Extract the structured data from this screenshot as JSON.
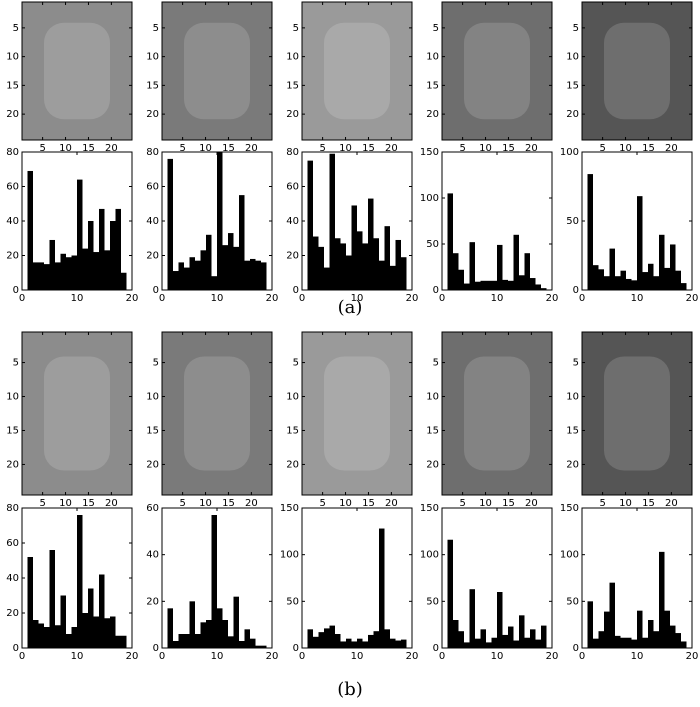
{
  "captions": [
    "(a)",
    "(b)"
  ],
  "chart_data": [
    {
      "type": "image",
      "xlim": [
        0.5,
        24.5
      ],
      "ylim": [
        24.5,
        0.5
      ],
      "xticks": [
        5,
        10,
        15,
        20
      ],
      "yticks": [
        5,
        10,
        15,
        20
      ]
    },
    {
      "type": "image",
      "xlim": [
        0.5,
        24.5
      ],
      "ylim": [
        24.5,
        0.5
      ],
      "xticks": [
        5,
        10,
        15,
        20
      ],
      "yticks": [
        5,
        10,
        15,
        20
      ]
    },
    {
      "type": "image",
      "xlim": [
        0.5,
        24.5
      ],
      "ylim": [
        24.5,
        0.5
      ],
      "xticks": [
        5,
        10,
        15,
        20
      ],
      "yticks": [
        5,
        10,
        15,
        20
      ]
    },
    {
      "type": "image",
      "xlim": [
        0.5,
        24.5
      ],
      "ylim": [
        24.5,
        0.5
      ],
      "xticks": [
        5,
        10,
        15,
        20
      ],
      "yticks": [
        5,
        10,
        15,
        20
      ]
    },
    {
      "type": "image",
      "xlim": [
        0.5,
        24.5
      ],
      "ylim": [
        24.5,
        0.5
      ],
      "xticks": [
        5,
        10,
        15,
        20
      ],
      "yticks": [
        5,
        10,
        15,
        20
      ]
    },
    {
      "type": "histogram",
      "bins": [
        1,
        2,
        3,
        4,
        5,
        6,
        7,
        8,
        9,
        10,
        11,
        12,
        13,
        14,
        15,
        16,
        17,
        18,
        19
      ],
      "values": [
        69,
        16,
        16,
        15,
        29,
        16,
        21,
        19,
        20,
        64,
        24,
        40,
        22,
        47,
        23,
        40,
        47,
        10
      ],
      "color": "#000000",
      "xlim": [
        0,
        20
      ],
      "ylim": [
        0,
        80
      ],
      "xticks": [
        0,
        10,
        20
      ],
      "yticks": [
        0,
        20,
        40,
        60,
        80
      ]
    },
    {
      "type": "histogram",
      "bins": [
        1,
        2,
        3,
        4,
        5,
        6,
        7,
        8,
        9,
        10,
        11,
        12,
        13,
        14,
        15,
        16,
        17,
        18,
        19
      ],
      "values": [
        76,
        11,
        16,
        13,
        19,
        17,
        23,
        32,
        8,
        80,
        26,
        33,
        25,
        55,
        17,
        18,
        17,
        16
      ],
      "color": "#000000",
      "xlim": [
        0,
        20
      ],
      "ylim": [
        0,
        80
      ],
      "xticks": [
        0,
        10,
        20
      ],
      "yticks": [
        0,
        20,
        40,
        60,
        80
      ]
    },
    {
      "type": "histogram",
      "bins": [
        1,
        2,
        3,
        4,
        5,
        6,
        7,
        8,
        9,
        10,
        11,
        12,
        13,
        14,
        15,
        16,
        17,
        18,
        19
      ],
      "values": [
        75,
        31,
        25,
        13,
        79,
        30,
        27,
        20,
        49,
        34,
        27,
        53,
        30,
        17,
        37,
        14,
        29,
        19
      ],
      "color": "#000000",
      "xlim": [
        0,
        20
      ],
      "ylim": [
        0,
        80
      ],
      "xticks": [
        0,
        10,
        20
      ],
      "yticks": [
        0,
        20,
        40,
        60,
        80
      ]
    },
    {
      "type": "histogram",
      "bins": [
        1,
        2,
        3,
        4,
        5,
        6,
        7,
        8,
        9,
        10,
        11,
        12,
        13,
        14,
        15,
        16,
        17,
        18,
        19
      ],
      "values": [
        105,
        40,
        22,
        7,
        52,
        9,
        10,
        10,
        10,
        49,
        11,
        10,
        60,
        16,
        40,
        13,
        6,
        2
      ],
      "color": "#000000",
      "xlim": [
        0,
        20
      ],
      "ylim": [
        0,
        150
      ],
      "xticks": [
        0,
        10,
        20
      ],
      "yticks": [
        0,
        50,
        100,
        150
      ]
    },
    {
      "type": "histogram",
      "bins": [
        1,
        2,
        3,
        4,
        5,
        6,
        7,
        8,
        9,
        10,
        11,
        12,
        13,
        14,
        15,
        16,
        17,
        18,
        19
      ],
      "values": [
        84,
        18,
        15,
        10,
        30,
        10,
        14,
        8,
        7,
        68,
        13,
        19,
        10,
        40,
        16,
        33,
        14,
        5
      ],
      "color": "#000000",
      "xlim": [
        0,
        20
      ],
      "ylim": [
        0,
        100
      ],
      "xticks": [
        0,
        10,
        20
      ],
      "yticks": [
        0,
        50,
        100
      ]
    },
    {
      "type": "image",
      "xlim": [
        0.5,
        24.5
      ],
      "ylim": [
        24.5,
        0.5
      ],
      "xticks": [
        5,
        10,
        15,
        20
      ],
      "yticks": [
        5,
        10,
        15,
        20
      ]
    },
    {
      "type": "image",
      "xlim": [
        0.5,
        24.5
      ],
      "ylim": [
        24.5,
        0.5
      ],
      "xticks": [
        5,
        10,
        15,
        20
      ],
      "yticks": [
        5,
        10,
        15,
        20
      ]
    },
    {
      "type": "image",
      "xlim": [
        0.5,
        24.5
      ],
      "ylim": [
        24.5,
        0.5
      ],
      "xticks": [
        5,
        10,
        15,
        20
      ],
      "yticks": [
        5,
        10,
        15,
        20
      ]
    },
    {
      "type": "image",
      "xlim": [
        0.5,
        24.5
      ],
      "ylim": [
        24.5,
        0.5
      ],
      "xticks": [
        5,
        10,
        15,
        20
      ],
      "yticks": [
        5,
        10,
        15,
        20
      ]
    },
    {
      "type": "image",
      "xlim": [
        0.5,
        24.5
      ],
      "ylim": [
        24.5,
        0.5
      ],
      "xticks": [
        5,
        10,
        15,
        20
      ],
      "yticks": [
        5,
        10,
        15,
        20
      ]
    },
    {
      "type": "histogram",
      "bins": [
        1,
        2,
        3,
        4,
        5,
        6,
        7,
        8,
        9,
        10,
        11,
        12,
        13,
        14,
        15,
        16,
        17,
        18,
        19
      ],
      "values": [
        52,
        16,
        14,
        12,
        56,
        13,
        30,
        8,
        12,
        76,
        20,
        34,
        18,
        42,
        17,
        18,
        7,
        7
      ],
      "color": "#000000",
      "xlim": [
        0,
        20
      ],
      "ylim": [
        0,
        80
      ],
      "xticks": [
        0,
        10,
        20
      ],
      "yticks": [
        0,
        20,
        40,
        60,
        80
      ]
    },
    {
      "type": "histogram",
      "bins": [
        1,
        2,
        3,
        4,
        5,
        6,
        7,
        8,
        9,
        10,
        11,
        12,
        13,
        14,
        15,
        16,
        17,
        18,
        19
      ],
      "values": [
        17,
        3,
        6,
        6,
        20,
        6,
        11,
        12,
        57,
        17,
        12,
        5,
        22,
        3,
        8,
        4,
        1,
        1
      ],
      "color": "#000000",
      "xlim": [
        0,
        20
      ],
      "ylim": [
        0,
        60
      ],
      "xticks": [
        0,
        10,
        20
      ],
      "yticks": [
        0,
        20,
        40,
        60
      ]
    },
    {
      "type": "histogram",
      "bins": [
        1,
        2,
        3,
        4,
        5,
        6,
        7,
        8,
        9,
        10,
        11,
        12,
        13,
        14,
        15,
        16,
        17,
        18,
        19
      ],
      "values": [
        20,
        12,
        17,
        21,
        24,
        15,
        7,
        10,
        7,
        10,
        7,
        14,
        18,
        128,
        20,
        10,
        8,
        9
      ],
      "color": "#000000",
      "xlim": [
        0,
        20
      ],
      "ylim": [
        0,
        150
      ],
      "xticks": [
        0,
        10,
        20
      ],
      "yticks": [
        0,
        50,
        100,
        150
      ]
    },
    {
      "type": "histogram",
      "bins": [
        1,
        2,
        3,
        4,
        5,
        6,
        7,
        8,
        9,
        10,
        11,
        12,
        13,
        14,
        15,
        16,
        17,
        18,
        19
      ],
      "values": [
        116,
        30,
        18,
        6,
        63,
        10,
        20,
        6,
        11,
        60,
        14,
        23,
        8,
        35,
        11,
        20,
        9,
        24
      ],
      "color": "#000000",
      "xlim": [
        0,
        20
      ],
      "ylim": [
        0,
        150
      ],
      "xticks": [
        0,
        10,
        20
      ],
      "yticks": [
        0,
        50,
        100,
        150
      ]
    },
    {
      "type": "histogram",
      "bins": [
        1,
        2,
        3,
        4,
        5,
        6,
        7,
        8,
        9,
        10,
        11,
        12,
        13,
        14,
        15,
        16,
        17,
        18,
        19
      ],
      "values": [
        50,
        10,
        18,
        39,
        70,
        13,
        11,
        11,
        9,
        40,
        11,
        30,
        18,
        103,
        40,
        24,
        16,
        7
      ],
      "color": "#000000",
      "xlim": [
        0,
        20
      ],
      "ylim": [
        0,
        150
      ],
      "xticks": [
        0,
        10,
        20
      ],
      "yticks": [
        0,
        50,
        100,
        150
      ]
    }
  ]
}
